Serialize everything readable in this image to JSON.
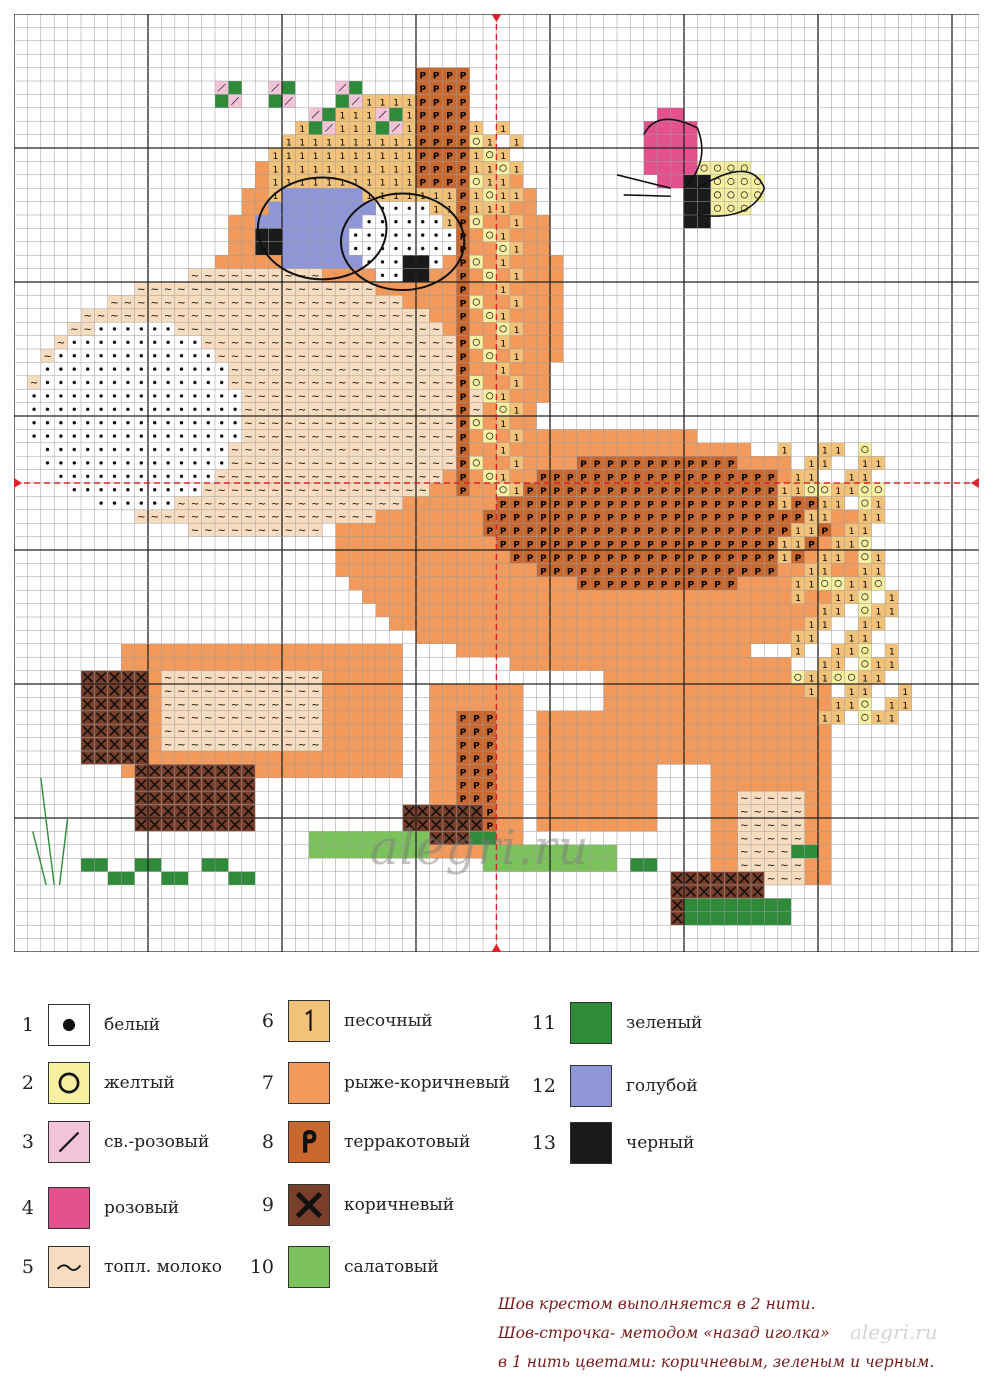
{
  "watermark": "alegri.ru",
  "site_mark": "alegri.ru",
  "colors": {
    "white": "#ffffff",
    "yellow": "#f7f0a0",
    "light_pink": "#f3c4d8",
    "pink": "#e2508e",
    "milk": "#f7dcc0",
    "sand": "#f2c27a",
    "orange": "#f19a5c",
    "terracotta": "#c8682e",
    "brown": "#7a3f2a",
    "salad": "#7cc25a",
    "green": "#2f8a3a",
    "blue": "#8f96d8",
    "black": "#1a1a1a",
    "grid": "#9a9a9a",
    "grid_major": "#222222",
    "center_mark": "#e0202a"
  },
  "legend": [
    {
      "num": "1",
      "label": "белый",
      "color": "#ffffff",
      "symbol": "dot-icon"
    },
    {
      "num": "2",
      "label": "желтый",
      "color": "#f7f0a0",
      "symbol": "circle-icon"
    },
    {
      "num": "3",
      "label": "св.-розовый",
      "color": "#f3c4d8",
      "symbol": "slash-icon"
    },
    {
      "num": "4",
      "label": "розовый",
      "color": "#e2508e",
      "symbol": "none"
    },
    {
      "num": "5",
      "label": "топл. молоко",
      "color": "#f7dcc0",
      "symbol": "tilde-icon"
    },
    {
      "num": "6",
      "label": "песочный",
      "color": "#f2c27a",
      "symbol": "one-icon"
    },
    {
      "num": "7",
      "label": "рыже-коричневый",
      "color": "#f19a5c",
      "symbol": "none"
    },
    {
      "num": "8",
      "label": "терракотовый",
      "color": "#c8682e",
      "symbol": "p-icon"
    },
    {
      "num": "9",
      "label": "коричневый",
      "color": "#7a3f2a",
      "symbol": "cross-icon"
    },
    {
      "num": "10",
      "label": "салатовый",
      "color": "#7cc25a",
      "symbol": "none"
    },
    {
      "num": "11",
      "label": "зеленый",
      "color": "#2f8a3a",
      "symbol": "none"
    },
    {
      "num": "12",
      "label": "голубой",
      "color": "#8f96d8",
      "symbol": "none"
    },
    {
      "num": "13",
      "label": "черный",
      "color": "#1a1a1a",
      "symbol": "none"
    }
  ],
  "notes": {
    "line1": "Шов крестом выполняется в 2 нити.",
    "line2": "Шов-строчка- методом «назад иголка»",
    "line3": "в 1 нить цветами: коричневым, зеленым и черным."
  }
}
